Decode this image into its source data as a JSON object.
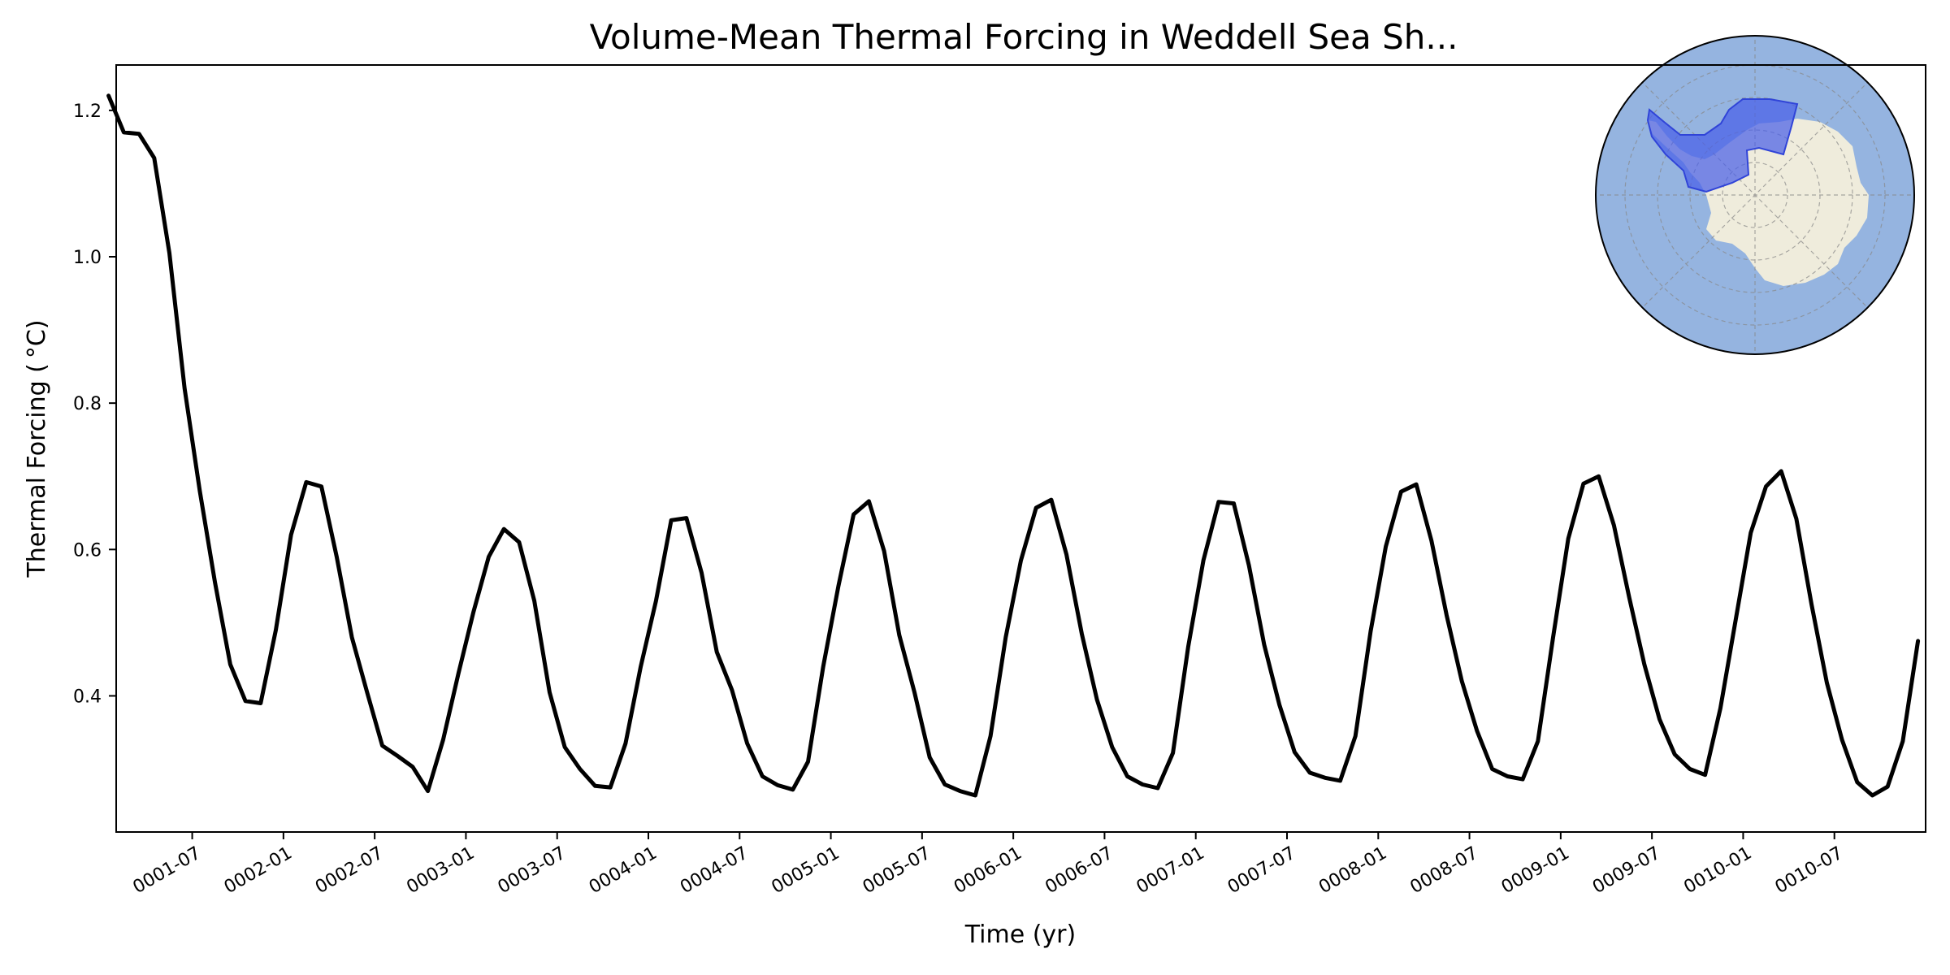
{
  "chart_data": {
    "type": "line",
    "title": "Volume-Mean Thermal Forcing in Weddell Sea Sh...",
    "xlabel": "Time (yr)",
    "ylabel": "Thermal Forcing ( °C)",
    "xlim": [
      "0001-01-16",
      "0010-12-16"
    ],
    "ylim": [
      0.214,
      1.262
    ],
    "grid": false,
    "y_ticks": [
      "0.4",
      "0.6",
      "0.8",
      "1.0",
      "1.2"
    ],
    "x_ticks": [
      "0001-07",
      "0002-01",
      "0002-07",
      "0003-01",
      "0003-07",
      "0004-01",
      "0004-07",
      "0005-01",
      "0005-07",
      "0006-01",
      "0006-07",
      "0007-01",
      "0007-07",
      "0008-01",
      "0008-07",
      "0009-01",
      "0009-07",
      "0010-01",
      "0010-07"
    ],
    "series": [
      {
        "color": "#000000",
        "x": [
          "0001-01",
          "0001-02",
          "0001-03",
          "0001-04",
          "0001-05",
          "0001-06",
          "0001-07",
          "0001-08",
          "0001-09",
          "0001-10",
          "0001-11",
          "0001-12",
          "0002-01",
          "0002-02",
          "0002-03",
          "0002-04",
          "0002-05",
          "0002-06",
          "0002-07",
          "0002-08",
          "0002-09",
          "0002-10",
          "0002-11",
          "0002-12",
          "0003-01",
          "0003-02",
          "0003-03",
          "0003-04",
          "0003-05",
          "0003-06",
          "0003-07",
          "0003-08",
          "0003-09",
          "0003-10",
          "0003-11",
          "0003-12",
          "0004-01",
          "0004-02",
          "0004-03",
          "0004-04",
          "0004-05",
          "0004-06",
          "0004-07",
          "0004-08",
          "0004-09",
          "0004-10",
          "0004-11",
          "0004-12",
          "0005-01",
          "0005-02",
          "0005-03",
          "0005-04",
          "0005-05",
          "0005-06",
          "0005-07",
          "0005-08",
          "0005-09",
          "0005-10",
          "0005-11",
          "0005-12",
          "0006-01",
          "0006-02",
          "0006-03",
          "0006-04",
          "0006-05",
          "0006-06",
          "0006-07",
          "0006-08",
          "0006-09",
          "0006-10",
          "0006-11",
          "0006-12",
          "0007-01",
          "0007-02",
          "0007-03",
          "0007-04",
          "0007-05",
          "0007-06",
          "0007-07",
          "0007-08",
          "0007-09",
          "0007-10",
          "0007-11",
          "0007-12",
          "0008-01",
          "0008-02",
          "0008-03",
          "0008-04",
          "0008-05",
          "0008-06",
          "0008-07",
          "0008-08",
          "0008-09",
          "0008-10",
          "0008-11",
          "0008-12",
          "0009-01",
          "0009-02",
          "0009-03",
          "0009-04",
          "0009-05",
          "0009-06",
          "0009-07",
          "0009-08",
          "0009-09",
          "0009-10",
          "0009-11",
          "0009-12",
          "0010-01",
          "0010-02",
          "0010-03",
          "0010-04",
          "0010-05",
          "0010-06",
          "0010-07",
          "0010-08",
          "0010-09",
          "0010-10",
          "0010-11",
          "0010-12"
        ],
        "y": [
          1.22,
          1.17,
          1.168,
          1.135,
          1.005,
          0.82,
          0.68,
          0.555,
          0.443,
          0.393,
          0.39,
          0.49,
          0.62,
          0.692,
          0.686,
          0.59,
          0.48,
          0.405,
          0.332,
          0.318,
          0.303,
          0.27,
          0.34,
          0.43,
          0.515,
          0.59,
          0.628,
          0.61,
          0.53,
          0.405,
          0.33,
          0.3,
          0.277,
          0.275,
          0.335,
          0.44,
          0.53,
          0.64,
          0.643,
          0.568,
          0.46,
          0.408,
          0.335,
          0.29,
          0.278,
          0.272,
          0.31,
          0.44,
          0.55,
          0.648,
          0.666,
          0.598,
          0.483,
          0.405,
          0.316,
          0.279,
          0.27,
          0.264,
          0.345,
          0.48,
          0.585,
          0.657,
          0.668,
          0.593,
          0.485,
          0.395,
          0.33,
          0.29,
          0.279,
          0.274,
          0.322,
          0.467,
          0.585,
          0.665,
          0.663,
          0.578,
          0.47,
          0.388,
          0.323,
          0.295,
          0.288,
          0.284,
          0.345,
          0.488,
          0.604,
          0.679,
          0.689,
          0.612,
          0.51,
          0.42,
          0.352,
          0.3,
          0.29,
          0.286,
          0.338,
          0.48,
          0.615,
          0.69,
          0.7,
          0.633,
          0.535,
          0.443,
          0.368,
          0.32,
          0.3,
          0.292,
          0.383,
          0.503,
          0.623,
          0.686,
          0.707,
          0.642,
          0.525,
          0.418,
          0.34,
          0.282,
          0.264,
          0.276,
          0.338,
          0.475
        ]
      }
    ]
  },
  "inset_map": {
    "ocean_color": "#95b4e0",
    "land_color": "#efecdc",
    "region_color": "#4a5fe8"
  }
}
